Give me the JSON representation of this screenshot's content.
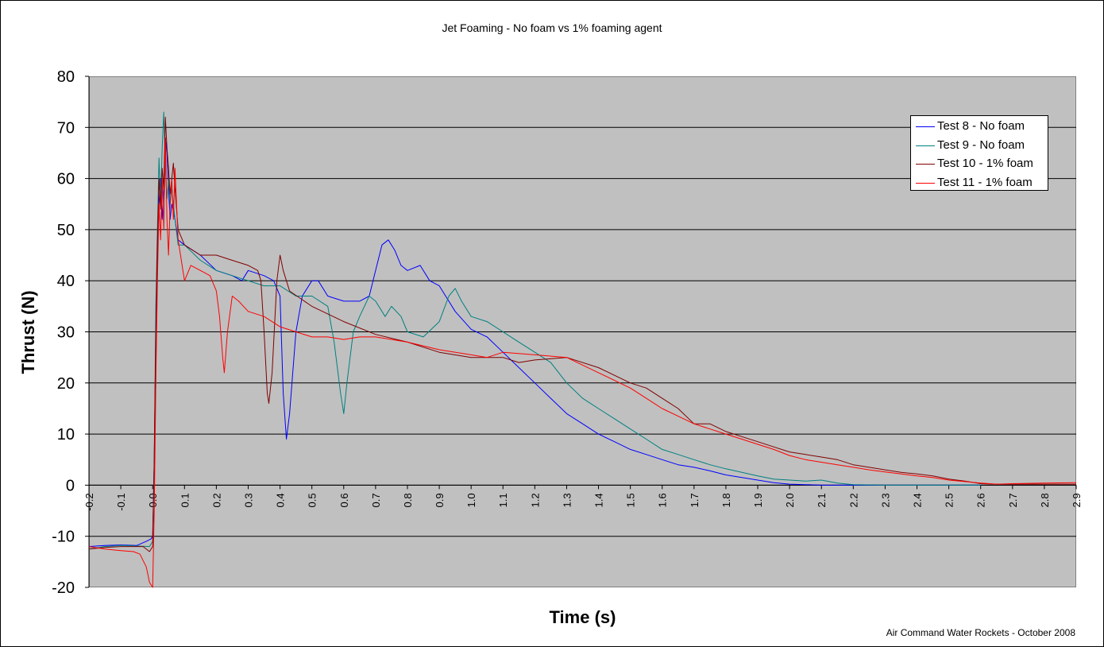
{
  "chart_data": {
    "type": "line",
    "title": "Jet Foaming - No foam vs 1% foaming agent",
    "xlabel": "Time (s)",
    "ylabel": "Thrust (N)",
    "credit": "Air Command Water Rockets - October 2008",
    "xlim": [
      -0.2,
      2.9
    ],
    "ylim": [
      -20,
      80
    ],
    "x_ticks": [
      "-0.2",
      "-0.1",
      "0.0",
      "0.1",
      "0.2",
      "0.3",
      "0.4",
      "0.5",
      "0.6",
      "0.7",
      "0.8",
      "0.9",
      "1.0",
      "1.1",
      "1.2",
      "1.3",
      "1.4",
      "1.5",
      "1.6",
      "1.7",
      "1.8",
      "1.9",
      "2.0",
      "2.1",
      "2.2",
      "2.3",
      "2.4",
      "2.5",
      "2.6",
      "2.7",
      "2.8",
      "2.9"
    ],
    "y_ticks": [
      "80",
      "70",
      "60",
      "50",
      "40",
      "30",
      "20",
      "10",
      "0",
      "-10",
      "-20"
    ],
    "grid": "horizontal",
    "legend_position": "top-right",
    "series": [
      {
        "name": "Test 8 - No foam",
        "color": "#0000ff",
        "points": [
          [
            -0.2,
            -12
          ],
          [
            -0.15,
            -11.8
          ],
          [
            -0.1,
            -11.7
          ],
          [
            -0.05,
            -11.8
          ],
          [
            -0.02,
            -11
          ],
          [
            -0.005,
            -10.5
          ],
          [
            0.0,
            -10
          ],
          [
            0.005,
            5
          ],
          [
            0.01,
            30
          ],
          [
            0.015,
            45
          ],
          [
            0.02,
            55
          ],
          [
            0.025,
            60
          ],
          [
            0.03,
            52
          ],
          [
            0.035,
            58
          ],
          [
            0.04,
            68
          ],
          [
            0.045,
            65
          ],
          [
            0.05,
            58
          ],
          [
            0.055,
            52
          ],
          [
            0.06,
            55
          ],
          [
            0.07,
            52
          ],
          [
            0.08,
            48
          ],
          [
            0.1,
            47
          ],
          [
            0.15,
            45
          ],
          [
            0.2,
            42
          ],
          [
            0.25,
            41
          ],
          [
            0.28,
            40
          ],
          [
            0.3,
            42
          ],
          [
            0.35,
            41
          ],
          [
            0.38,
            40
          ],
          [
            0.4,
            37
          ],
          [
            0.41,
            18
          ],
          [
            0.42,
            9
          ],
          [
            0.43,
            14
          ],
          [
            0.45,
            30
          ],
          [
            0.47,
            37
          ],
          [
            0.5,
            40
          ],
          [
            0.52,
            40
          ],
          [
            0.55,
            37
          ],
          [
            0.6,
            36
          ],
          [
            0.65,
            36
          ],
          [
            0.68,
            37
          ],
          [
            0.7,
            42
          ],
          [
            0.72,
            47
          ],
          [
            0.74,
            48
          ],
          [
            0.76,
            46
          ],
          [
            0.78,
            43
          ],
          [
            0.8,
            42
          ],
          [
            0.84,
            43
          ],
          [
            0.87,
            40
          ],
          [
            0.9,
            39
          ],
          [
            0.95,
            34
          ],
          [
            1.0,
            30.5
          ],
          [
            1.05,
            29
          ],
          [
            1.1,
            26
          ],
          [
            1.15,
            23
          ],
          [
            1.2,
            20
          ],
          [
            1.25,
            17
          ],
          [
            1.3,
            14
          ],
          [
            1.35,
            12
          ],
          [
            1.4,
            10
          ],
          [
            1.45,
            8.5
          ],
          [
            1.5,
            7
          ],
          [
            1.55,
            6
          ],
          [
            1.6,
            5
          ],
          [
            1.65,
            4
          ],
          [
            1.7,
            3.5
          ],
          [
            1.75,
            2.8
          ],
          [
            1.8,
            2
          ],
          [
            1.85,
            1.5
          ],
          [
            1.9,
            1
          ],
          [
            1.95,
            0.5
          ],
          [
            2.0,
            0.2
          ],
          [
            2.1,
            0
          ],
          [
            2.5,
            0
          ],
          [
            2.6,
            0
          ]
        ]
      },
      {
        "name": "Test 9 - No foam",
        "color": "#008080",
        "points": [
          [
            -0.2,
            -12.5
          ],
          [
            -0.15,
            -12
          ],
          [
            -0.1,
            -11.8
          ],
          [
            -0.05,
            -11.9
          ],
          [
            -0.01,
            -12
          ],
          [
            0.0,
            -11
          ],
          [
            0.005,
            5
          ],
          [
            0.01,
            35
          ],
          [
            0.015,
            50
          ],
          [
            0.02,
            64
          ],
          [
            0.025,
            55
          ],
          [
            0.03,
            66
          ],
          [
            0.035,
            73
          ],
          [
            0.04,
            62
          ],
          [
            0.045,
            56
          ],
          [
            0.05,
            60
          ],
          [
            0.055,
            55
          ],
          [
            0.06,
            58
          ],
          [
            0.07,
            52
          ],
          [
            0.08,
            47
          ],
          [
            0.1,
            47
          ],
          [
            0.15,
            44
          ],
          [
            0.2,
            42
          ],
          [
            0.25,
            41
          ],
          [
            0.3,
            40
          ],
          [
            0.35,
            39
          ],
          [
            0.4,
            39
          ],
          [
            0.45,
            37
          ],
          [
            0.5,
            37
          ],
          [
            0.55,
            35
          ],
          [
            0.57,
            28
          ],
          [
            0.59,
            18
          ],
          [
            0.6,
            14
          ],
          [
            0.61,
            20
          ],
          [
            0.63,
            30
          ],
          [
            0.65,
            33
          ],
          [
            0.68,
            37
          ],
          [
            0.7,
            36
          ],
          [
            0.73,
            33
          ],
          [
            0.75,
            35
          ],
          [
            0.78,
            33
          ],
          [
            0.8,
            30
          ],
          [
            0.85,
            29
          ],
          [
            0.9,
            32
          ],
          [
            0.93,
            37
          ],
          [
            0.95,
            38.5
          ],
          [
            0.97,
            36
          ],
          [
            1.0,
            33
          ],
          [
            1.05,
            32
          ],
          [
            1.1,
            30
          ],
          [
            1.15,
            28
          ],
          [
            1.2,
            26
          ],
          [
            1.25,
            24
          ],
          [
            1.3,
            20
          ],
          [
            1.35,
            17
          ],
          [
            1.4,
            15
          ],
          [
            1.45,
            13
          ],
          [
            1.5,
            11
          ],
          [
            1.55,
            9
          ],
          [
            1.6,
            7
          ],
          [
            1.65,
            6
          ],
          [
            1.7,
            5
          ],
          [
            1.75,
            4
          ],
          [
            1.8,
            3.2
          ],
          [
            1.85,
            2.5
          ],
          [
            1.9,
            1.8
          ],
          [
            1.95,
            1.2
          ],
          [
            2.0,
            1
          ],
          [
            2.05,
            0.8
          ],
          [
            2.1,
            1
          ],
          [
            2.15,
            0.4
          ],
          [
            2.2,
            0.1
          ],
          [
            2.3,
            0
          ],
          [
            2.6,
            0
          ]
        ]
      },
      {
        "name": "Test 10 - 1% foam",
        "color": "#800000",
        "points": [
          [
            -0.2,
            -12.5
          ],
          [
            -0.15,
            -12.2
          ],
          [
            -0.1,
            -12
          ],
          [
            -0.05,
            -12
          ],
          [
            -0.03,
            -12
          ],
          [
            -0.01,
            -13
          ],
          [
            0.0,
            -12
          ],
          [
            0.005,
            5
          ],
          [
            0.01,
            30
          ],
          [
            0.015,
            48
          ],
          [
            0.02,
            60
          ],
          [
            0.025,
            54
          ],
          [
            0.03,
            62
          ],
          [
            0.035,
            58
          ],
          [
            0.04,
            72
          ],
          [
            0.045,
            66
          ],
          [
            0.05,
            62
          ],
          [
            0.055,
            57
          ],
          [
            0.06,
            60
          ],
          [
            0.065,
            63
          ],
          [
            0.07,
            58
          ],
          [
            0.08,
            50
          ],
          [
            0.1,
            47
          ],
          [
            0.15,
            45
          ],
          [
            0.2,
            45
          ],
          [
            0.25,
            44
          ],
          [
            0.3,
            43
          ],
          [
            0.33,
            42
          ],
          [
            0.34,
            40
          ],
          [
            0.35,
            30
          ],
          [
            0.36,
            18
          ],
          [
            0.365,
            16
          ],
          [
            0.375,
            22
          ],
          [
            0.39,
            40
          ],
          [
            0.4,
            45
          ],
          [
            0.41,
            42
          ],
          [
            0.43,
            38
          ],
          [
            0.5,
            35
          ],
          [
            0.6,
            32
          ],
          [
            0.7,
            29.5
          ],
          [
            0.8,
            28
          ],
          [
            0.9,
            26
          ],
          [
            1.0,
            25
          ],
          [
            1.1,
            25
          ],
          [
            1.15,
            24
          ],
          [
            1.2,
            24.5
          ],
          [
            1.3,
            25
          ],
          [
            1.4,
            23
          ],
          [
            1.5,
            20
          ],
          [
            1.55,
            19
          ],
          [
            1.6,
            17
          ],
          [
            1.65,
            15
          ],
          [
            1.7,
            12
          ],
          [
            1.75,
            12
          ],
          [
            1.8,
            10.5
          ],
          [
            1.85,
            9.5
          ],
          [
            1.9,
            8.5
          ],
          [
            1.95,
            7.5
          ],
          [
            2.0,
            6.5
          ],
          [
            2.05,
            6
          ],
          [
            2.1,
            5.5
          ],
          [
            2.15,
            5
          ],
          [
            2.2,
            4
          ],
          [
            2.25,
            3.5
          ],
          [
            2.3,
            3
          ],
          [
            2.35,
            2.5
          ],
          [
            2.4,
            2.2
          ],
          [
            2.45,
            1.8
          ],
          [
            2.5,
            1.2
          ],
          [
            2.55,
            0.8
          ],
          [
            2.6,
            0.3
          ],
          [
            2.65,
            0.2
          ],
          [
            2.7,
            0.2
          ],
          [
            2.8,
            0.2
          ],
          [
            2.9,
            0.2
          ]
        ]
      },
      {
        "name": "Test 11 - 1% foam",
        "color": "#ff0000",
        "points": [
          [
            -0.2,
            -12
          ],
          [
            -0.15,
            -12.5
          ],
          [
            -0.1,
            -12.8
          ],
          [
            -0.06,
            -13
          ],
          [
            -0.04,
            -13.5
          ],
          [
            -0.02,
            -16
          ],
          [
            -0.01,
            -19
          ],
          [
            0.0,
            -20
          ],
          [
            0.005,
            -5
          ],
          [
            0.01,
            20
          ],
          [
            0.015,
            40
          ],
          [
            0.02,
            55
          ],
          [
            0.025,
            48
          ],
          [
            0.03,
            60
          ],
          [
            0.035,
            50
          ],
          [
            0.04,
            68
          ],
          [
            0.045,
            52
          ],
          [
            0.05,
            45
          ],
          [
            0.055,
            55
          ],
          [
            0.06,
            60
          ],
          [
            0.065,
            52
          ],
          [
            0.07,
            62
          ],
          [
            0.075,
            55
          ],
          [
            0.08,
            48
          ],
          [
            0.09,
            44
          ],
          [
            0.1,
            40
          ],
          [
            0.12,
            43
          ],
          [
            0.15,
            42
          ],
          [
            0.18,
            41
          ],
          [
            0.2,
            38
          ],
          [
            0.21,
            33
          ],
          [
            0.22,
            25
          ],
          [
            0.225,
            22
          ],
          [
            0.235,
            30
          ],
          [
            0.25,
            37
          ],
          [
            0.27,
            36
          ],
          [
            0.3,
            34
          ],
          [
            0.35,
            33
          ],
          [
            0.4,
            31
          ],
          [
            0.45,
            30
          ],
          [
            0.5,
            29
          ],
          [
            0.55,
            29
          ],
          [
            0.6,
            28.5
          ],
          [
            0.65,
            29
          ],
          [
            0.7,
            29
          ],
          [
            0.8,
            28
          ],
          [
            0.9,
            26.5
          ],
          [
            1.0,
            25.5
          ],
          [
            1.05,
            25
          ],
          [
            1.1,
            26
          ],
          [
            1.2,
            25.5
          ],
          [
            1.3,
            25
          ],
          [
            1.4,
            22
          ],
          [
            1.5,
            19
          ],
          [
            1.55,
            17
          ],
          [
            1.6,
            15
          ],
          [
            1.65,
            13.5
          ],
          [
            1.7,
            12
          ],
          [
            1.75,
            11
          ],
          [
            1.8,
            10
          ],
          [
            1.85,
            9
          ],
          [
            1.9,
            8
          ],
          [
            1.95,
            7
          ],
          [
            2.0,
            5.8
          ],
          [
            2.05,
            5
          ],
          [
            2.1,
            4.5
          ],
          [
            2.15,
            4
          ],
          [
            2.2,
            3.5
          ],
          [
            2.25,
            3
          ],
          [
            2.3,
            2.6
          ],
          [
            2.35,
            2.2
          ],
          [
            2.4,
            1.8
          ],
          [
            2.45,
            1.5
          ],
          [
            2.5,
            1
          ],
          [
            2.55,
            0.7
          ],
          [
            2.6,
            0.4
          ],
          [
            2.65,
            0.2
          ],
          [
            2.7,
            0.3
          ],
          [
            2.8,
            0.4
          ],
          [
            2.9,
            0.5
          ]
        ]
      }
    ]
  }
}
